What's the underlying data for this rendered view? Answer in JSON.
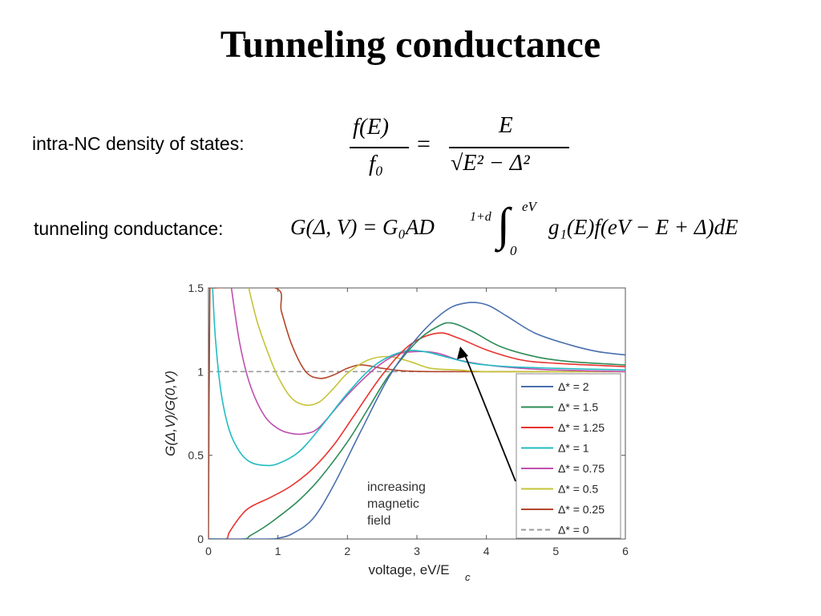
{
  "title": "Tunneling conductance",
  "dos": {
    "label": "intra-NC density of states:",
    "eq": {
      "num_l": "f(E)",
      "den_l": "f₀",
      "eq": "=",
      "num_r": "E",
      "den_r": "√E² − Δ²"
    }
  },
  "tc": {
    "label": "tunneling conductance:",
    "eq": {
      "lhs": "G(Δ, V) = G₀AD",
      "sup": "1+d",
      "int": "∫",
      "upper": "eV",
      "lower": "0",
      "rhs": "g₁(E)f(eV − E + Δ)dE"
    }
  },
  "chart_data": {
    "type": "line",
    "xlabel": "voltage, eV/E",
    "xlabel_sub": "c",
    "ylabel": "G(Δ,V)/G(0,V)",
    "xlim": [
      0,
      6
    ],
    "ylim": [
      0,
      1.5
    ],
    "xticks": [
      "0",
      "1",
      "2",
      "3",
      "4",
      "5",
      "6"
    ],
    "yticks": [
      "0",
      "0.5",
      "1",
      "1.5"
    ],
    "legend_position": "right",
    "annotation": [
      "increasing",
      "magnetic",
      "field"
    ],
    "series": [
      {
        "name": "Δ* = 2",
        "color": "#4a6fad",
        "dash": false,
        "x": [
          0,
          0.85,
          1,
          1.2,
          1.5,
          1.8,
          2.2,
          2.6,
          3,
          3.4,
          3.7,
          4,
          4.3,
          4.7,
          5.2,
          5.6,
          6
        ],
        "y": [
          0,
          0,
          0.005,
          0.03,
          0.12,
          0.32,
          0.65,
          0.97,
          1.2,
          1.36,
          1.41,
          1.4,
          1.33,
          1.23,
          1.16,
          1.12,
          1.1
        ]
      },
      {
        "name": "Δ* = 1.5",
        "color": "#2e8b57",
        "dash": false,
        "x": [
          0,
          0.5,
          0.6,
          0.8,
          1,
          1.3,
          1.6,
          2,
          2.3,
          2.6,
          3,
          3.3,
          3.5,
          3.8,
          4.2,
          4.7,
          5.2,
          6
        ],
        "y": [
          0,
          0,
          0.02,
          0.07,
          0.13,
          0.23,
          0.36,
          0.58,
          0.78,
          0.98,
          1.18,
          1.27,
          1.29,
          1.24,
          1.15,
          1.09,
          1.06,
          1.04
        ]
      },
      {
        "name": "Δ* = 1.25",
        "color": "#e8332f",
        "dash": false,
        "x": [
          0,
          0.25,
          0.3,
          0.45,
          0.6,
          0.9,
          1.2,
          1.5,
          1.8,
          2.1,
          2.5,
          2.9,
          3.3,
          3.6,
          4,
          4.5,
          5,
          6
        ],
        "y": [
          0,
          0,
          0.04,
          0.13,
          0.19,
          0.25,
          0.32,
          0.42,
          0.56,
          0.74,
          0.98,
          1.16,
          1.23,
          1.2,
          1.13,
          1.07,
          1.05,
          1.03
        ]
      },
      {
        "name": "Δ* = 1",
        "color": "#22bcc2",
        "dash": false,
        "x": [
          0.06,
          0.1,
          0.18,
          0.3,
          0.45,
          0.6,
          0.8,
          1,
          1.3,
          1.6,
          2,
          2.4,
          2.8,
          3.1,
          3.4,
          3.8,
          4.3,
          5,
          6
        ],
        "y": [
          1.5,
          1.2,
          0.88,
          0.65,
          0.52,
          0.46,
          0.44,
          0.45,
          0.52,
          0.66,
          0.87,
          1.04,
          1.12,
          1.12,
          1.09,
          1.05,
          1.03,
          1.02,
          1.01
        ]
      },
      {
        "name": "Δ* = 0.75",
        "color": "#c04faf",
        "dash": false,
        "x": [
          0.33,
          0.45,
          0.6,
          0.8,
          1,
          1.2,
          1.4,
          1.6,
          2,
          2.4,
          2.7,
          3,
          3.3,
          3.6,
          4,
          4.5,
          5,
          6
        ],
        "y": [
          1.5,
          1.17,
          0.92,
          0.74,
          0.66,
          0.63,
          0.63,
          0.67,
          0.86,
          1.02,
          1.1,
          1.12,
          1.11,
          1.07,
          1.04,
          1.02,
          1.01,
          1
        ]
      },
      {
        "name": "Δ* = 0.5",
        "color": "#c5c437",
        "dash": false,
        "x": [
          0.58,
          0.7,
          0.85,
          1,
          1.2,
          1.4,
          1.6,
          1.8,
          2,
          2.3,
          2.6,
          2.9,
          3.2,
          3.6,
          4,
          5,
          6
        ],
        "y": [
          1.5,
          1.3,
          1.12,
          0.97,
          0.84,
          0.8,
          0.82,
          0.9,
          0.99,
          1.07,
          1.09,
          1.06,
          1.02,
          1.01,
          1,
          1,
          1
        ]
      },
      {
        "name": "Δ* = 0.25",
        "color": "#b3472b",
        "dash": false,
        "x": [
          0,
          0.02,
          0.06,
          0.06,
          0.96,
          1.05,
          1.2,
          1.4,
          1.6,
          1.8,
          2,
          2.2,
          2.5,
          2.8,
          3.2,
          4,
          5,
          6
        ],
        "y": [
          0,
          1.5,
          1.5,
          1.5,
          1.5,
          1.36,
          1.16,
          1,
          0.96,
          0.98,
          1.02,
          1.04,
          1.02,
          1.005,
          1,
          1,
          1,
          1
        ]
      },
      {
        "name": "Δ* = 0",
        "color": "#9a9a9a",
        "dash": true,
        "x": [
          0,
          6
        ],
        "y": [
          1,
          1
        ]
      }
    ]
  }
}
